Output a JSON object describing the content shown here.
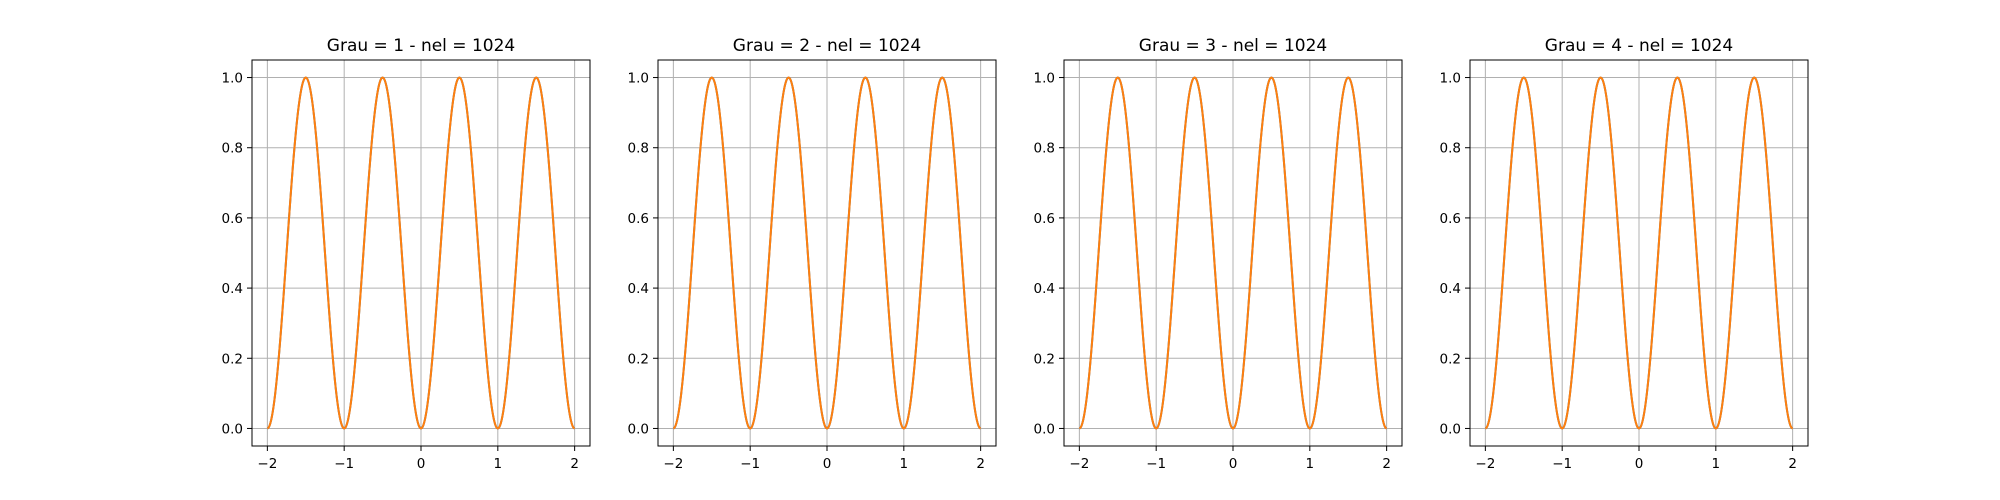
{
  "chart_data": [
    {
      "type": "line",
      "title": "Grau = 1 - nel = 1024",
      "xlim": [
        -2.2,
        2.2
      ],
      "ylim": [
        -0.05,
        1.05
      ],
      "xticks": [
        -2,
        -1,
        0,
        1,
        2
      ],
      "xtick_labels": [
        "−2",
        "−1",
        "0",
        "1",
        "2"
      ],
      "yticks": [
        0.0,
        0.2,
        0.4,
        0.6,
        0.8,
        1.0
      ],
      "ytick_labels": [
        "0.0",
        "0.2",
        "0.4",
        "0.6",
        "0.8",
        "1.0"
      ],
      "grid": true,
      "series": [
        {
          "x_range": [
            -2,
            2
          ],
          "samples": 401,
          "formula": "sin(pi*x)^2",
          "color": "#1f77b4"
        },
        {
          "x_range": [
            -2,
            2
          ],
          "samples": 401,
          "formula": "sin(pi*x)^2",
          "color": "#ff7f0e"
        }
      ]
    },
    {
      "type": "line",
      "title": "Grau = 2 - nel = 1024",
      "xlim": [
        -2.2,
        2.2
      ],
      "ylim": [
        -0.05,
        1.05
      ],
      "xticks": [
        -2,
        -1,
        0,
        1,
        2
      ],
      "xtick_labels": [
        "−2",
        "−1",
        "0",
        "1",
        "2"
      ],
      "yticks": [
        0.0,
        0.2,
        0.4,
        0.6,
        0.8,
        1.0
      ],
      "ytick_labels": [
        "0.0",
        "0.2",
        "0.4",
        "0.6",
        "0.8",
        "1.0"
      ],
      "grid": true,
      "series": [
        {
          "x_range": [
            -2,
            2
          ],
          "samples": 401,
          "formula": "sin(pi*x)^2",
          "color": "#1f77b4"
        },
        {
          "x_range": [
            -2,
            2
          ],
          "samples": 401,
          "formula": "sin(pi*x)^2",
          "color": "#ff7f0e"
        }
      ]
    },
    {
      "type": "line",
      "title": "Grau = 3 - nel = 1024",
      "xlim": [
        -2.2,
        2.2
      ],
      "ylim": [
        -0.05,
        1.05
      ],
      "xticks": [
        -2,
        -1,
        0,
        1,
        2
      ],
      "xtick_labels": [
        "−2",
        "−1",
        "0",
        "1",
        "2"
      ],
      "yticks": [
        0.0,
        0.2,
        0.4,
        0.6,
        0.8,
        1.0
      ],
      "ytick_labels": [
        "0.0",
        "0.2",
        "0.4",
        "0.6",
        "0.8",
        "1.0"
      ],
      "grid": true,
      "series": [
        {
          "x_range": [
            -2,
            2
          ],
          "samples": 401,
          "formula": "sin(pi*x)^2",
          "color": "#1f77b4"
        },
        {
          "x_range": [
            -2,
            2
          ],
          "samples": 401,
          "formula": "sin(pi*x)^2",
          "color": "#ff7f0e"
        }
      ]
    },
    {
      "type": "line",
      "title": "Grau = 4 - nel = 1024",
      "xlim": [
        -2.2,
        2.2
      ],
      "ylim": [
        -0.05,
        1.05
      ],
      "xticks": [
        -2,
        -1,
        0,
        1,
        2
      ],
      "xtick_labels": [
        "−2",
        "−1",
        "0",
        "1",
        "2"
      ],
      "yticks": [
        0.0,
        0.2,
        0.4,
        0.6,
        0.8,
        1.0
      ],
      "ytick_labels": [
        "0.0",
        "0.2",
        "0.4",
        "0.6",
        "0.8",
        "1.0"
      ],
      "grid": true,
      "series": [
        {
          "x_range": [
            -2,
            2
          ],
          "samples": 401,
          "formula": "sin(pi*x)^2",
          "color": "#1f77b4"
        },
        {
          "x_range": [
            -2,
            2
          ],
          "samples": 401,
          "formula": "sin(pi*x)^2",
          "color": "#ff7f0e"
        }
      ]
    }
  ]
}
